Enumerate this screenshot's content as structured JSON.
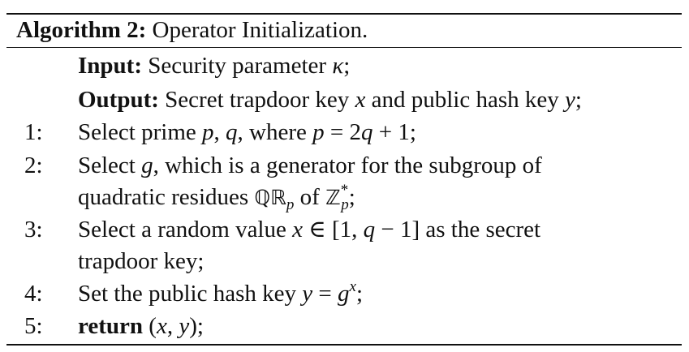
{
  "caption": {
    "label": "Algorithm 2:",
    "title": " Operator Initialization."
  },
  "input": {
    "label": "Input:",
    "text": " Security parameter ",
    "kappa": "κ",
    "end": ";"
  },
  "output": {
    "label": "Output:",
    "text": " Secret trapdoor key ",
    "x": "x",
    "mid": " and public hash key ",
    "y": "y",
    "end": ";"
  },
  "steps": [
    {
      "num": "1:"
    },
    {
      "num": "2:"
    },
    {
      "num": "3:"
    },
    {
      "num": "4:"
    },
    {
      "num": "5:"
    }
  ],
  "s1": {
    "a": "Select prime ",
    "p": "p",
    "comma": ", ",
    "q": "q",
    "b": ", where ",
    "p2": "p",
    "eq": " = 2",
    "q2": "q",
    "plus": " + 1;"
  },
  "s2": {
    "a": "Select ",
    "g": "g",
    "b": ", which is a generator for the subgroup of",
    "c": "quadratic residues ",
    "QR": "ℚℝ",
    "p": "p",
    "d": " of ",
    "Z": "ℤ",
    "star": "*",
    "p2": "p",
    "end": ";"
  },
  "s3": {
    "a": "Select a random value ",
    "x": "x",
    "b": " ∈ [1, ",
    "q": "q",
    "c": " − 1] as the secret",
    "d": "trapdoor key;"
  },
  "s4": {
    "a": "Set the public hash key ",
    "y": "y",
    "eq": " = ",
    "g": "g",
    "x": "x",
    "end": ";"
  },
  "s5": {
    "kw": "return",
    "a": " (",
    "x": "x",
    "comma": ", ",
    "y": "y",
    "end": ");"
  }
}
